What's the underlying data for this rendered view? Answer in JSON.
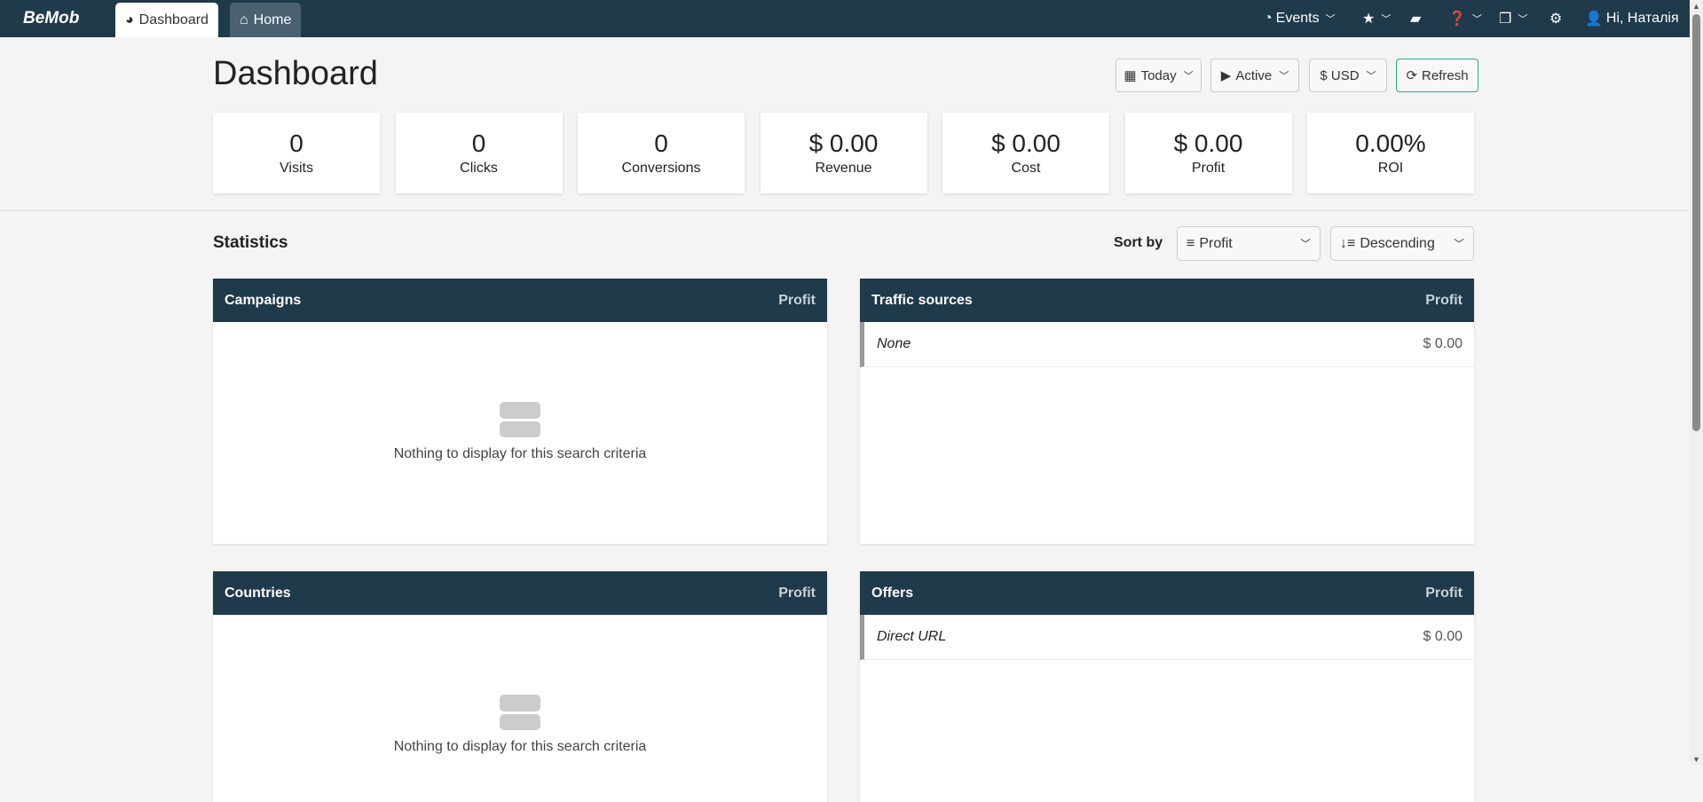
{
  "topbar": {
    "logo": "BeMob",
    "tabs": [
      {
        "label": "Dashboard",
        "icon": "gauge-icon"
      },
      {
        "label": "Home",
        "icon": "home-icon"
      }
    ],
    "events": "Events",
    "user": "Hi, Наталія"
  },
  "page": {
    "title": "Dashboard"
  },
  "toolbar": {
    "date": "Today",
    "status": "Active",
    "currency": "$ USD",
    "refresh": "Refresh"
  },
  "stats": [
    {
      "value": "0",
      "label": "Visits"
    },
    {
      "value": "0",
      "label": "Clicks"
    },
    {
      "value": "0",
      "label": "Conversions"
    },
    {
      "value": "$ 0.00",
      "label": "Revenue"
    },
    {
      "value": "$ 0.00",
      "label": "Cost"
    },
    {
      "value": "$ 0.00",
      "label": "Profit"
    },
    {
      "value": "0.00%",
      "label": "ROI"
    }
  ],
  "statistics": {
    "title": "Statistics",
    "sort_label": "Sort by",
    "sort_field": "Profit",
    "sort_order": "Descending"
  },
  "panels": [
    {
      "title": "Campaigns",
      "metric": "Profit",
      "empty": "Nothing to display for this search criteria"
    },
    {
      "title": "Traffic sources",
      "metric": "Profit",
      "rows": [
        {
          "name": "None",
          "value": "$ 0.00"
        }
      ]
    },
    {
      "title": "Countries",
      "metric": "Profit",
      "empty": "Nothing to display for this search criteria"
    },
    {
      "title": "Offers",
      "metric": "Profit",
      "rows": [
        {
          "name": "Direct URL",
          "value": "$ 0.00"
        }
      ]
    }
  ]
}
